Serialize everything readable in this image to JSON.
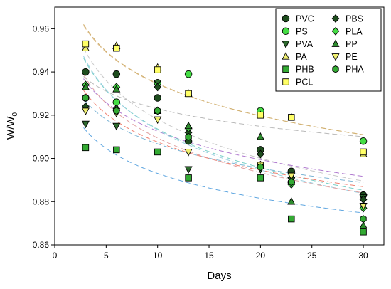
{
  "chart_data": {
    "type": "scatter",
    "title": "",
    "xlabel": "Days",
    "ylabel_main": "W/W",
    "ylabel_sub": "0",
    "xlim": [
      0,
      32
    ],
    "ylim": [
      0.86,
      0.97
    ],
    "xticks": [
      0,
      5,
      10,
      15,
      20,
      25,
      30
    ],
    "yticks": [
      0.86,
      0.88,
      0.9,
      0.92,
      0.94,
      0.96
    ],
    "ytick_labels": [
      "0.86",
      "0.88",
      "0.90",
      "0.92",
      "0.94",
      "0.96"
    ],
    "grid": false,
    "legend_position": "top-right",
    "x": [
      3,
      6,
      10,
      13,
      20,
      23,
      30
    ],
    "series": [
      {
        "name": "PVC",
        "marker": "circle",
        "fill": "#1e4d1e",
        "line_color": "#c8c8c8",
        "values": [
          0.94,
          0.939,
          0.928,
          0.908,
          0.904,
          0.894,
          0.883
        ]
      },
      {
        "name": "PS",
        "marker": "circle",
        "fill": "#44dd44",
        "line_color": "#b9b9b9",
        "values": [
          0.928,
          0.926,
          0.935,
          0.939,
          0.922,
          0.889,
          0.908
        ]
      },
      {
        "name": "PVA",
        "marker": "triangle-down",
        "fill": "#2e6b2e",
        "line_color": "#7fb6d6",
        "values": [
          0.916,
          0.915,
          0.935,
          0.895,
          0.895,
          0.89,
          0.882
        ]
      },
      {
        "name": "PA",
        "marker": "triangle-up",
        "fill": "#f0f070",
        "line_color": "#e0c090",
        "values": [
          0.951,
          0.952,
          0.942,
          0.93,
          0.92,
          0.919,
          0.902
        ]
      },
      {
        "name": "PHB",
        "marker": "square",
        "fill": "#33aa33",
        "line_color": "#5fa6e0",
        "values": [
          0.905,
          0.904,
          0.903,
          0.891,
          0.891,
          0.872,
          0.866
        ]
      },
      {
        "name": "PCL",
        "marker": "square",
        "fill": "#ffff66",
        "line_color": "#d0b070",
        "values": [
          0.953,
          0.951,
          0.941,
          0.93,
          0.92,
          0.919,
          0.903
        ]
      },
      {
        "name": "PBS",
        "marker": "diamond",
        "fill": "#1e4d1e",
        "line_color": "#b07ad0",
        "values": [
          0.924,
          0.923,
          0.933,
          0.912,
          0.902,
          0.891,
          0.881
        ]
      },
      {
        "name": "PLA",
        "marker": "diamond",
        "fill": "#44dd44",
        "line_color": "#7ad0c8",
        "values": [
          0.934,
          0.933,
          0.922,
          0.914,
          0.897,
          0.888,
          0.877
        ]
      },
      {
        "name": "PP",
        "marker": "triangle-up",
        "fill": "#2e8b2e",
        "line_color": "#9ad0e0",
        "values": [
          0.933,
          0.932,
          0.922,
          0.915,
          0.91,
          0.88,
          0.869
        ]
      },
      {
        "name": "PE",
        "marker": "triangle-down",
        "fill": "#f0f070",
        "line_color": "#f08070",
        "values": [
          0.922,
          0.921,
          0.918,
          0.903,
          0.897,
          0.892,
          0.878
        ]
      },
      {
        "name": "PHA",
        "marker": "hexagon",
        "fill": "#33aa33",
        "line_color": "#e0a0a0",
        "values": [
          0.928,
          0.922,
          0.922,
          0.91,
          0.896,
          0.889,
          0.872
        ]
      }
    ]
  }
}
